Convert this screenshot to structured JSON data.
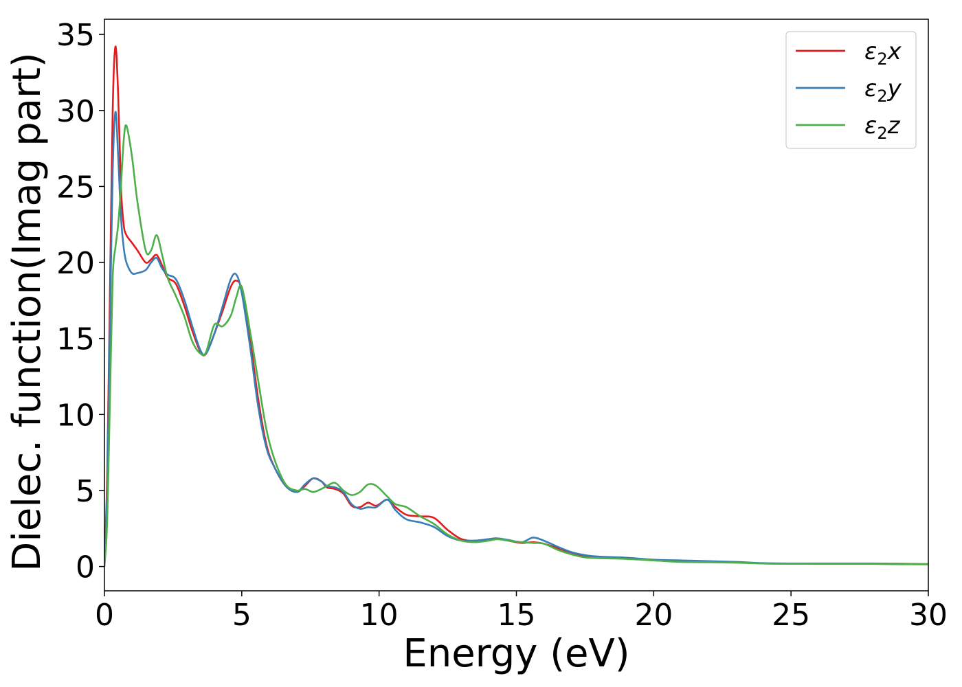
{
  "chart_data": {
    "type": "line",
    "title": "",
    "xlabel": "Energy (eV)",
    "ylabel": "Dielec. function(Imag part)",
    "xlim": [
      0,
      30
    ],
    "ylim": [
      -1.6,
      36
    ],
    "xticks": [
      0,
      5,
      10,
      15,
      20,
      25,
      30
    ],
    "yticks": [
      0,
      5,
      10,
      15,
      20,
      25,
      30,
      35
    ],
    "grid": false,
    "legend_position": "top-right",
    "series": [
      {
        "name": "ε₂x",
        "legend": {
          "symbol": "ε",
          "sub": "2",
          "var": "x"
        },
        "color": "#e41a1c",
        "x": [
          0,
          0.1,
          0.2,
          0.3,
          0.4,
          0.5,
          0.6,
          0.7,
          0.8,
          1.0,
          1.2,
          1.5,
          1.7,
          1.9,
          2.1,
          2.3,
          2.6,
          2.9,
          3.2,
          3.5,
          3.7,
          4.0,
          4.3,
          4.6,
          4.8,
          5.0,
          5.3,
          5.6,
          5.9,
          6.2,
          6.6,
          7.0,
          7.3,
          7.6,
          7.9,
          8.1,
          8.4,
          8.7,
          9.0,
          9.3,
          9.6,
          9.9,
          10.3,
          10.6,
          11.0,
          11.5,
          12.0,
          12.5,
          13.0,
          13.5,
          14.0,
          14.3,
          14.7,
          15.2,
          15.6,
          16.0,
          16.5,
          17.0,
          17.5,
          18.0,
          19.0,
          20.0,
          21.0,
          22.0,
          23.0,
          24.0,
          25.0,
          26.0,
          27.0,
          28.0,
          29.0,
          30.0
        ],
        "y": [
          0,
          6,
          18,
          30,
          34.2,
          31,
          25,
          22.5,
          21.8,
          21.3,
          20.8,
          20.0,
          20.2,
          20.5,
          19.8,
          19.0,
          18.6,
          17.2,
          15.5,
          14.1,
          14.0,
          15.3,
          16.8,
          18.4,
          18.8,
          18.2,
          15.0,
          11.0,
          8.0,
          6.5,
          5.3,
          4.9,
          5.3,
          5.8,
          5.6,
          5.2,
          5.1,
          4.8,
          4.0,
          3.9,
          4.2,
          4.0,
          4.4,
          3.9,
          3.4,
          3.3,
          3.2,
          2.4,
          1.8,
          1.7,
          1.8,
          1.85,
          1.7,
          1.55,
          1.6,
          1.5,
          1.2,
          0.85,
          0.7,
          0.6,
          0.55,
          0.4,
          0.35,
          0.3,
          0.28,
          0.2,
          0.18,
          0.18,
          0.18,
          0.18,
          0.16,
          0.15
        ]
      },
      {
        "name": "ε₂y",
        "legend": {
          "symbol": "ε",
          "sub": "2",
          "var": "y"
        },
        "color": "#377eb8",
        "x": [
          0,
          0.1,
          0.2,
          0.3,
          0.4,
          0.5,
          0.6,
          0.7,
          0.8,
          1.0,
          1.2,
          1.5,
          1.7,
          1.9,
          2.1,
          2.3,
          2.6,
          2.9,
          3.2,
          3.5,
          3.7,
          4.0,
          4.3,
          4.6,
          4.8,
          5.0,
          5.3,
          5.6,
          5.9,
          6.2,
          6.6,
          7.0,
          7.3,
          7.6,
          7.9,
          8.1,
          8.4,
          8.7,
          9.0,
          9.3,
          9.6,
          9.9,
          10.3,
          10.6,
          11.0,
          11.5,
          12.0,
          12.5,
          13.0,
          13.5,
          14.0,
          14.3,
          14.7,
          15.2,
          15.6,
          16.0,
          16.5,
          17.0,
          17.5,
          18.0,
          19.0,
          20.0,
          21.0,
          22.0,
          23.0,
          24.0,
          25.0,
          26.0,
          27.0,
          28.0,
          29.0,
          30.0
        ],
        "y": [
          0,
          5,
          16,
          26,
          29.9,
          27,
          23,
          21,
          20.0,
          19.3,
          19.3,
          19.5,
          20.0,
          20.3,
          19.6,
          19.2,
          18.9,
          17.6,
          15.8,
          14.2,
          14.0,
          15.3,
          17.1,
          18.9,
          19.2,
          18.0,
          14.5,
          10.5,
          7.8,
          6.5,
          5.3,
          4.9,
          5.4,
          5.8,
          5.6,
          5.3,
          5.2,
          4.9,
          4.1,
          3.8,
          3.9,
          3.9,
          4.4,
          3.7,
          3.1,
          2.9,
          2.6,
          2.0,
          1.7,
          1.7,
          1.8,
          1.85,
          1.75,
          1.6,
          1.9,
          1.7,
          1.3,
          0.95,
          0.75,
          0.65,
          0.58,
          0.45,
          0.4,
          0.35,
          0.3,
          0.22,
          0.2,
          0.2,
          0.2,
          0.2,
          0.18,
          0.16
        ]
      },
      {
        "name": "ε₂z",
        "legend": {
          "symbol": "ε",
          "sub": "2",
          "var": "z"
        },
        "color": "#4daf4a",
        "x": [
          0,
          0.1,
          0.2,
          0.3,
          0.4,
          0.5,
          0.6,
          0.7,
          0.8,
          1.0,
          1.2,
          1.5,
          1.7,
          1.9,
          2.1,
          2.3,
          2.6,
          2.9,
          3.2,
          3.5,
          3.7,
          4.0,
          4.3,
          4.6,
          4.8,
          5.0,
          5.3,
          5.6,
          5.9,
          6.2,
          6.6,
          7.0,
          7.3,
          7.6,
          7.9,
          8.1,
          8.4,
          8.7,
          9.0,
          9.3,
          9.6,
          9.9,
          10.3,
          10.6,
          11.0,
          11.5,
          12.0,
          12.5,
          13.0,
          13.5,
          14.0,
          14.3,
          14.7,
          15.2,
          15.6,
          16.0,
          16.5,
          17.0,
          17.5,
          18.0,
          19.0,
          20.0,
          21.0,
          22.0,
          23.0,
          24.0,
          25.0,
          26.0,
          27.0,
          28.0,
          29.0,
          30.0
        ],
        "y": [
          0,
          3,
          11,
          19,
          21,
          22.5,
          25,
          28,
          29.0,
          27.0,
          24.0,
          20.8,
          20.8,
          21.8,
          20.5,
          19.0,
          17.8,
          16.5,
          14.8,
          14.0,
          14.1,
          15.9,
          15.8,
          16.5,
          17.7,
          18.4,
          15.5,
          12.2,
          9.0,
          7.0,
          5.4,
          5.0,
          5.1,
          4.9,
          5.1,
          5.3,
          5.5,
          5.0,
          4.7,
          4.9,
          5.4,
          5.3,
          4.6,
          4.1,
          3.9,
          3.3,
          2.8,
          2.1,
          1.7,
          1.6,
          1.7,
          1.8,
          1.7,
          1.6,
          1.55,
          1.5,
          1.1,
          0.8,
          0.6,
          0.55,
          0.5,
          0.4,
          0.3,
          0.28,
          0.25,
          0.2,
          0.18,
          0.17,
          0.17,
          0.17,
          0.15,
          0.15
        ]
      }
    ]
  }
}
